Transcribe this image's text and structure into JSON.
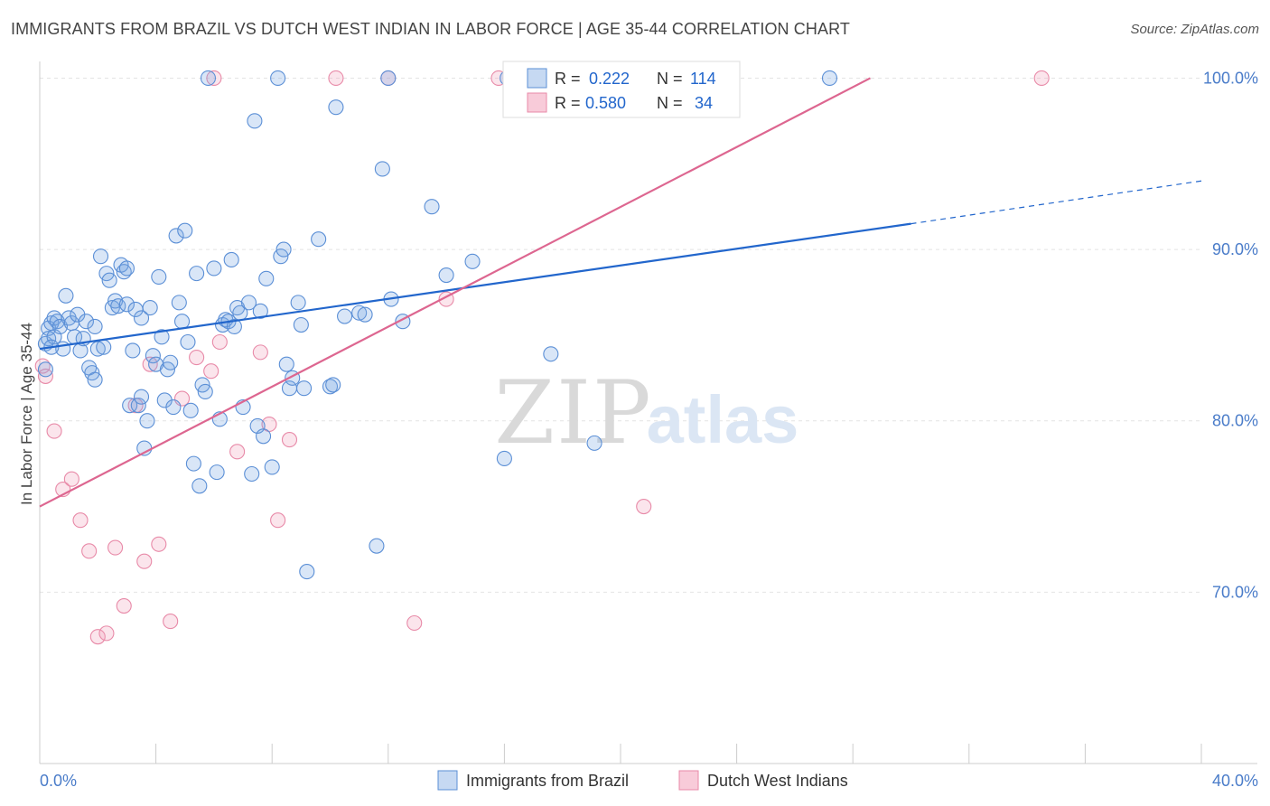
{
  "title": "IMMIGRANTS FROM BRAZIL VS DUTCH WEST INDIAN IN LABOR FORCE | AGE 35-44 CORRELATION CHART",
  "source": "Source: ZipAtlas.com",
  "watermark": {
    "zip": "ZIP",
    "atlas": "atlas"
  },
  "colors": {
    "blue": "#5b8fd6",
    "blue_line": "#2266cc",
    "pink": "#e88aa8",
    "pink_line": "#dd6690",
    "tick_text": "#4a7cc9"
  },
  "legend_box": [
    {
      "r_label": "R =",
      "r_value": "0.222",
      "n_label": "N =",
      "n_value": "114"
    },
    {
      "r_label": "R =",
      "r_value": "0.580",
      "n_label": "N =",
      "n_value": "34"
    }
  ],
  "chart_data": {
    "type": "scatter",
    "title": "IMMIGRANTS FROM BRAZIL VS DUTCH WEST INDIAN IN LABOR FORCE | AGE 35-44 CORRELATION CHART",
    "xlabel": "",
    "ylabel": "In Labor Force | Age 35-44",
    "xlim": [
      0,
      40
    ],
    "ylim": [
      60,
      101.5
    ],
    "x_tick_labels": [
      "0.0%",
      "40.0%"
    ],
    "y_ticks": [
      70,
      80,
      90,
      100
    ],
    "y_tick_labels": [
      "70.0%",
      "80.0%",
      "90.0%",
      "100.0%"
    ],
    "grid": true,
    "legend_position": "bottom",
    "series": [
      {
        "name": "Immigrants from Brazil",
        "color": "#5b8fd6",
        "trend": {
          "x": [
            0,
            30
          ],
          "y": [
            84.2,
            91.5
          ],
          "dashed_extension_to": [
            40,
            94.0
          ]
        },
        "points": [
          [
            0.2,
            84.5
          ],
          [
            0.3,
            85.4
          ],
          [
            0.3,
            84.8
          ],
          [
            0.4,
            85.7
          ],
          [
            0.5,
            86.0
          ],
          [
            0.5,
            84.9
          ],
          [
            0.6,
            85.8
          ],
          [
            0.7,
            85.5
          ],
          [
            0.8,
            84.2
          ],
          [
            0.9,
            87.3
          ],
          [
            1.0,
            86.0
          ],
          [
            1.1,
            85.7
          ],
          [
            1.2,
            84.9
          ],
          [
            1.3,
            86.2
          ],
          [
            1.4,
            84.1
          ],
          [
            1.5,
            84.8
          ],
          [
            1.6,
            85.8
          ],
          [
            1.7,
            83.1
          ],
          [
            1.8,
            82.8
          ],
          [
            1.9,
            82.4
          ],
          [
            2.0,
            84.2
          ],
          [
            2.1,
            89.6
          ],
          [
            2.2,
            84.3
          ],
          [
            2.3,
            88.6
          ],
          [
            2.4,
            88.2
          ],
          [
            2.5,
            86.6
          ],
          [
            2.6,
            87.0
          ],
          [
            2.7,
            86.7
          ],
          [
            2.8,
            89.1
          ],
          [
            2.9,
            88.7
          ],
          [
            3.0,
            86.8
          ],
          [
            3.1,
            80.9
          ],
          [
            3.2,
            84.1
          ],
          [
            3.3,
            86.5
          ],
          [
            3.4,
            80.9
          ],
          [
            3.5,
            81.4
          ],
          [
            3.5,
            86.0
          ],
          [
            3.6,
            78.4
          ],
          [
            3.7,
            80.0
          ],
          [
            3.8,
            86.6
          ],
          [
            3.9,
            83.8
          ],
          [
            4.0,
            83.3
          ],
          [
            4.1,
            88.4
          ],
          [
            4.2,
            84.9
          ],
          [
            4.3,
            81.2
          ],
          [
            4.4,
            83.0
          ],
          [
            4.5,
            83.4
          ],
          [
            4.6,
            80.8
          ],
          [
            4.7,
            90.8
          ],
          [
            4.8,
            86.9
          ],
          [
            4.9,
            85.8
          ],
          [
            5.0,
            91.1
          ],
          [
            5.1,
            84.6
          ],
          [
            5.2,
            80.6
          ],
          [
            5.3,
            77.5
          ],
          [
            5.4,
            88.6
          ],
          [
            5.5,
            76.2
          ],
          [
            5.6,
            82.1
          ],
          [
            5.7,
            81.7
          ],
          [
            5.8,
            100.0
          ],
          [
            6.0,
            88.9
          ],
          [
            6.1,
            77.0
          ],
          [
            6.2,
            80.1
          ],
          [
            6.3,
            85.6
          ],
          [
            6.4,
            85.9
          ],
          [
            6.5,
            85.8
          ],
          [
            6.6,
            89.4
          ],
          [
            6.8,
            86.6
          ],
          [
            6.9,
            86.3
          ],
          [
            7.0,
            80.8
          ],
          [
            7.2,
            86.9
          ],
          [
            7.3,
            76.9
          ],
          [
            7.4,
            97.5
          ],
          [
            7.5,
            79.7
          ],
          [
            7.6,
            86.4
          ],
          [
            7.7,
            79.1
          ],
          [
            7.8,
            88.3
          ],
          [
            8.0,
            77.3
          ],
          [
            8.2,
            100.0
          ],
          [
            8.3,
            89.6
          ],
          [
            8.4,
            90.0
          ],
          [
            8.5,
            83.3
          ],
          [
            8.6,
            81.9
          ],
          [
            8.7,
            82.5
          ],
          [
            9.0,
            85.6
          ],
          [
            9.1,
            81.9
          ],
          [
            9.2,
            71.2
          ],
          [
            9.6,
            90.6
          ],
          [
            10.0,
            82.0
          ],
          [
            10.1,
            82.1
          ],
          [
            10.2,
            98.3
          ],
          [
            10.5,
            86.1
          ],
          [
            11.0,
            86.3
          ],
          [
            11.2,
            86.2
          ],
          [
            11.6,
            72.7
          ],
          [
            11.8,
            94.7
          ],
          [
            12.0,
            100.0
          ],
          [
            12.1,
            87.1
          ],
          [
            12.5,
            85.8
          ],
          [
            13.5,
            92.5
          ],
          [
            14.0,
            88.5
          ],
          [
            14.9,
            89.3
          ],
          [
            16.0,
            77.8
          ],
          [
            16.1,
            100.0
          ],
          [
            17.6,
            83.9
          ],
          [
            19.1,
            78.7
          ],
          [
            21.1,
            100.0
          ],
          [
            27.2,
            100.0
          ],
          [
            0.2,
            83.0
          ],
          [
            0.4,
            84.3
          ],
          [
            1.9,
            85.5
          ],
          [
            3.0,
            88.9
          ],
          [
            6.7,
            85.5
          ],
          [
            8.9,
            86.9
          ]
        ]
      },
      {
        "name": "Dutch West Indians",
        "color": "#e88aa8",
        "trend": {
          "x": [
            0,
            28.6
          ],
          "y": [
            75.0,
            100.0
          ]
        },
        "points": [
          [
            0.1,
            83.2
          ],
          [
            0.2,
            82.6
          ],
          [
            0.5,
            79.4
          ],
          [
            0.8,
            76.0
          ],
          [
            1.1,
            76.6
          ],
          [
            1.4,
            74.2
          ],
          [
            1.7,
            72.4
          ],
          [
            2.0,
            67.4
          ],
          [
            2.3,
            67.6
          ],
          [
            2.6,
            72.6
          ],
          [
            2.9,
            69.2
          ],
          [
            3.3,
            80.9
          ],
          [
            3.6,
            71.8
          ],
          [
            3.8,
            83.3
          ],
          [
            4.1,
            72.8
          ],
          [
            4.5,
            68.3
          ],
          [
            4.9,
            81.3
          ],
          [
            5.4,
            83.7
          ],
          [
            5.9,
            82.9
          ],
          [
            6.0,
            100.0
          ],
          [
            6.2,
            84.6
          ],
          [
            6.8,
            78.2
          ],
          [
            7.6,
            84.0
          ],
          [
            7.9,
            79.8
          ],
          [
            8.2,
            74.2
          ],
          [
            8.6,
            78.9
          ],
          [
            10.2,
            100.0
          ],
          [
            12.0,
            100.0
          ],
          [
            12.9,
            68.2
          ],
          [
            14.0,
            87.1
          ],
          [
            15.8,
            100.0
          ],
          [
            16.5,
            100.0
          ],
          [
            20.8,
            75.0
          ],
          [
            34.5,
            100.0
          ]
        ]
      }
    ]
  }
}
